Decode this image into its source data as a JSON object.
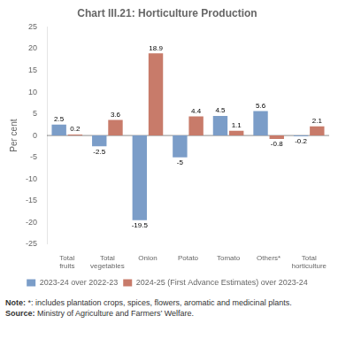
{
  "chart_data": {
    "type": "bar",
    "title": "Chart III.21: Horticulture Production",
    "categories": [
      "Total\nfruits",
      "Total\nvegetables",
      "Onion",
      "Potato",
      "Tomato",
      "Others*",
      "Total\nhorticulture"
    ],
    "series": [
      {
        "name": "2023-24 over 2022-23",
        "color": "#7b9dc8",
        "values": [
          2.5,
          -2.5,
          -19.5,
          -5.0,
          4.5,
          5.6,
          -0.2
        ]
      },
      {
        "name": "2024-25 (First Advance Estimates) over 2023-24",
        "color": "#c87b6a",
        "values": [
          0.2,
          3.6,
          18.9,
          4.4,
          1.1,
          -0.8,
          2.1
        ]
      }
    ],
    "ylabel": "Per cent",
    "ylim": [
      -25,
      25
    ],
    "yticks": [
      -25,
      -20,
      -15,
      -10,
      -5,
      0,
      5,
      10,
      15,
      20,
      25
    ],
    "grid": false,
    "legend": "bottom",
    "data_labels": true,
    "annotations": [
      "Note: *: includes plantation crops, spices, flowers, aromatic and medicinal plants.",
      "Source: Ministry of Agriculture and Farmers’ Welfare."
    ]
  }
}
